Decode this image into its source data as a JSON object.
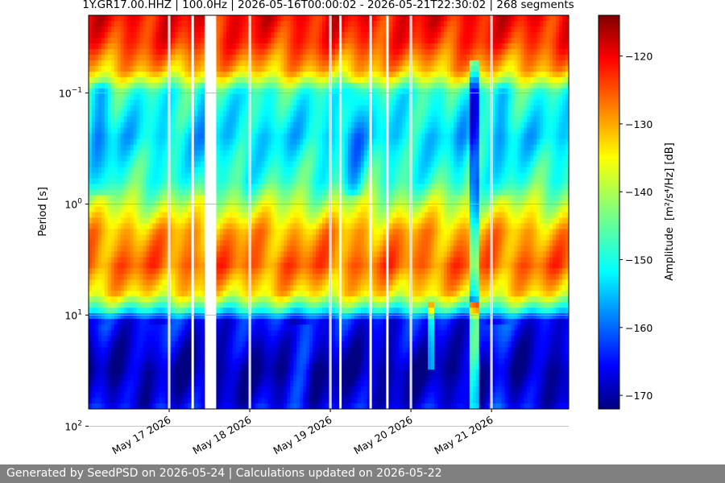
{
  "chart_data": {
    "type": "heatmap",
    "title": "1Y.GR17.00.HHZ | 100.0Hz | 2026-05-16T00:00:02 - 2026-05-21T22:30:02 | 268 segments",
    "ylabel": "Period [s]",
    "yscale": "log",
    "y_range": [
      0.02,
      70
    ],
    "y_ticks": [
      {
        "value": 0.1,
        "base": "10",
        "exp": "−1"
      },
      {
        "value": 1,
        "base": "10",
        "exp": "0"
      },
      {
        "value": 10,
        "base": "10",
        "exp": "1"
      },
      {
        "value": 100,
        "base": "10",
        "exp": "2"
      }
    ],
    "y_inverted": true,
    "x_range": [
      "2026-05-16T00:00",
      "2026-05-21T23:00"
    ],
    "x_ticks": [
      {
        "date": "2026-05-17",
        "label": "May 17 2026"
      },
      {
        "date": "2026-05-18",
        "label": "May 18 2026"
      },
      {
        "date": "2026-05-19",
        "label": "May 19 2026"
      },
      {
        "date": "2026-05-20",
        "label": "May 20 2026"
      },
      {
        "date": "2026-05-21",
        "label": "May 21 2026"
      }
    ],
    "grid": true,
    "data_gaps": [
      "2026-05-17T00:00",
      "2026-05-17T07:00",
      "2026-05-17T11:00",
      "2026-05-18T00:00",
      "2026-05-19T00:00",
      "2026-05-19T03:00",
      "2026-05-19T12:00",
      "2026-05-19T17:00",
      "2026-05-20T00:00",
      "2026-05-21T00:00"
    ],
    "colorbar": {
      "label": "Amplitude",
      "units": "[m²/s⁴/Hz] [dB]",
      "range": [
        -172,
        -114
      ],
      "ticks": [
        -120,
        -130,
        -140,
        -150,
        -160,
        -170
      ],
      "colormap": "jet"
    }
  },
  "footer": {
    "text": "Generated by SeedPSD on 2026-05-24 | Calculations updated on 2026-05-22"
  }
}
